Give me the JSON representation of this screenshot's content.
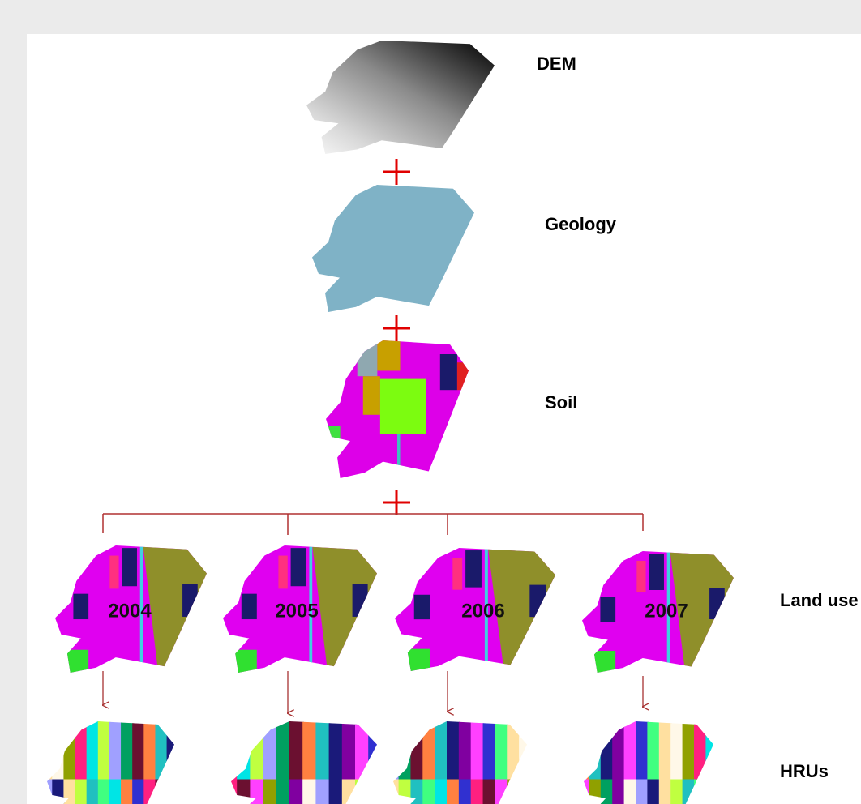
{
  "layers": [
    {
      "label": "DEM"
    },
    {
      "label": "Geology"
    },
    {
      "label": "Soil"
    }
  ],
  "land_use": {
    "label": "Land use",
    "years": [
      "2004",
      "2005",
      "2006",
      "2007"
    ]
  },
  "hrus": {
    "label": "HRUs"
  }
}
